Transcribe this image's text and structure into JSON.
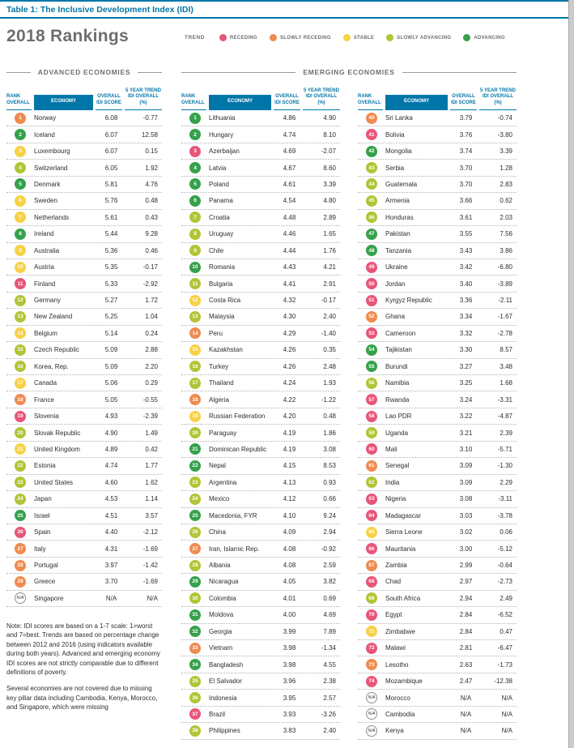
{
  "page": {
    "table_label": "Table 1: The Inclusive Development Index (IDI)",
    "title": "2018 Rankings"
  },
  "legend": {
    "label": "TREND",
    "items": [
      {
        "label": "RECEDING",
        "color": "#e75578"
      },
      {
        "label": "SLOWLY RECEDING",
        "color": "#ef8b50"
      },
      {
        "label": "STABLE",
        "color": "#f8d147"
      },
      {
        "label": "SLOWLY ADVANCING",
        "color": "#b2c437"
      },
      {
        "label": "ADVANCING",
        "color": "#35a14b"
      }
    ]
  },
  "sections": {
    "advanced": "ADVANCED ECONOMIES",
    "emerging": "EMERGING ECONOMIES"
  },
  "column_headers": {
    "rank": "RANK OVERALL",
    "economy": "ECONOMY",
    "score": "OVERALL IDI SCORE",
    "trend": "5 YEAR TREND IDI OVERALL (%)"
  },
  "trend_colors": {
    "receding": "#e75578",
    "slowly-receding": "#ef8b50",
    "stable": "#f8d147",
    "slowly-advancing": "#b2c437",
    "advancing": "#35a14b"
  },
  "columns": [
    {
      "id": "advanced",
      "rows": [
        {
          "rank": "1",
          "economy": "Norway",
          "score": "6.08",
          "trend": "-0.77",
          "cat": "slowly-receding"
        },
        {
          "rank": "2",
          "economy": "Iceland",
          "score": "6.07",
          "trend": "12.58",
          "cat": "advancing"
        },
        {
          "rank": "3",
          "economy": "Luxembourg",
          "score": "6.07",
          "trend": "0.15",
          "cat": "stable"
        },
        {
          "rank": "4",
          "economy": "Switzerland",
          "score": "6.05",
          "trend": "1.92",
          "cat": "slowly-advancing"
        },
        {
          "rank": "5",
          "economy": "Denmark",
          "score": "5.81",
          "trend": "4.76",
          "cat": "advancing"
        },
        {
          "rank": "6",
          "economy": "Sweden",
          "score": "5.76",
          "trend": "0.48",
          "cat": "stable"
        },
        {
          "rank": "7",
          "economy": "Netherlands",
          "score": "5.61",
          "trend": "0.43",
          "cat": "stable"
        },
        {
          "rank": "8",
          "economy": "Ireland",
          "score": "5.44",
          "trend": "9.28",
          "cat": "advancing"
        },
        {
          "rank": "9",
          "economy": "Australia",
          "score": "5.36",
          "trend": "0.46",
          "cat": "stable"
        },
        {
          "rank": "10",
          "economy": "Austria",
          "score": "5.35",
          "trend": "-0.17",
          "cat": "stable"
        },
        {
          "rank": "11",
          "economy": "Finland",
          "score": "5.33",
          "trend": "-2.92",
          "cat": "receding"
        },
        {
          "rank": "12",
          "economy": "Germany",
          "score": "5.27",
          "trend": "1.72",
          "cat": "slowly-advancing"
        },
        {
          "rank": "13",
          "economy": "New Zealand",
          "score": "5.25",
          "trend": "1.04",
          "cat": "slowly-advancing"
        },
        {
          "rank": "14",
          "economy": "Belgium",
          "score": "5.14",
          "trend": "0.24",
          "cat": "stable"
        },
        {
          "rank": "15",
          "economy": "Czech Republic",
          "score": "5.09",
          "trend": "2.88",
          "cat": "slowly-advancing"
        },
        {
          "rank": "16",
          "economy": "Korea, Rep.",
          "score": "5.09",
          "trend": "2.20",
          "cat": "slowly-advancing"
        },
        {
          "rank": "17",
          "economy": "Canada",
          "score": "5.06",
          "trend": "0.29",
          "cat": "stable"
        },
        {
          "rank": "18",
          "economy": "France",
          "score": "5.05",
          "trend": "-0.55",
          "cat": "slowly-receding"
        },
        {
          "rank": "19",
          "economy": "Slovenia",
          "score": "4.93",
          "trend": "-2.39",
          "cat": "receding"
        },
        {
          "rank": "20",
          "economy": "Slovak Republic",
          "score": "4.90",
          "trend": "1.49",
          "cat": "slowly-advancing"
        },
        {
          "rank": "21",
          "economy": "United Kingdom",
          "score": "4.89",
          "trend": "0.42",
          "cat": "stable"
        },
        {
          "rank": "22",
          "economy": "Estonia",
          "score": "4.74",
          "trend": "1.77",
          "cat": "slowly-advancing"
        },
        {
          "rank": "23",
          "economy": "United States",
          "score": "4.60",
          "trend": "1.62",
          "cat": "slowly-advancing"
        },
        {
          "rank": "24",
          "economy": "Japan",
          "score": "4.53",
          "trend": "1.14",
          "cat": "slowly-advancing"
        },
        {
          "rank": "25",
          "economy": "Israel",
          "score": "4.51",
          "trend": "3.57",
          "cat": "advancing"
        },
        {
          "rank": "26",
          "economy": "Spain",
          "score": "4.40",
          "trend": "-2.12",
          "cat": "receding"
        },
        {
          "rank": "27",
          "economy": "Italy",
          "score": "4.31",
          "trend": "-1.69",
          "cat": "slowly-receding"
        },
        {
          "rank": "28",
          "economy": "Portugal",
          "score": "3.97",
          "trend": "-1.42",
          "cat": "slowly-receding"
        },
        {
          "rank": "29",
          "economy": "Greece",
          "score": "3.70",
          "trend": "-1.69",
          "cat": "slowly-receding"
        },
        {
          "rank": "N/A",
          "economy": "Singapore",
          "score": "N/A",
          "trend": "N/A",
          "cat": "na"
        }
      ]
    },
    {
      "id": "emerging-1",
      "rows": [
        {
          "rank": "1",
          "economy": "Lithuania",
          "score": "4.86",
          "trend": "4.90",
          "cat": "advancing"
        },
        {
          "rank": "2",
          "economy": "Hungary",
          "score": "4.74",
          "trend": "8.10",
          "cat": "advancing"
        },
        {
          "rank": "3",
          "economy": "Azerbaijan",
          "score": "4.69",
          "trend": "-2.07",
          "cat": "receding"
        },
        {
          "rank": "4",
          "economy": "Latvia",
          "score": "4.67",
          "trend": "8.60",
          "cat": "advancing"
        },
        {
          "rank": "5",
          "economy": "Poland",
          "score": "4.61",
          "trend": "3.39",
          "cat": "advancing"
        },
        {
          "rank": "6",
          "economy": "Panama",
          "score": "4.54",
          "trend": "4.80",
          "cat": "advancing"
        },
        {
          "rank": "7",
          "economy": "Croatia",
          "score": "4.48",
          "trend": "2.89",
          "cat": "slowly-advancing"
        },
        {
          "rank": "8",
          "economy": "Uruguay",
          "score": "4.46",
          "trend": "1.65",
          "cat": "slowly-advancing"
        },
        {
          "rank": "9",
          "economy": "Chile",
          "score": "4.44",
          "trend": "1.76",
          "cat": "slowly-advancing"
        },
        {
          "rank": "10",
          "economy": "Romania",
          "score": "4.43",
          "trend": "4.21",
          "cat": "advancing"
        },
        {
          "rank": "11",
          "economy": "Bulgaria",
          "score": "4.41",
          "trend": "2.91",
          "cat": "slowly-advancing"
        },
        {
          "rank": "12",
          "economy": "Costa Rica",
          "score": "4.32",
          "trend": "-0.17",
          "cat": "stable"
        },
        {
          "rank": "13",
          "economy": "Malaysia",
          "score": "4.30",
          "trend": "2.40",
          "cat": "slowly-advancing"
        },
        {
          "rank": "14",
          "economy": "Peru",
          "score": "4.29",
          "trend": "-1.40",
          "cat": "slowly-receding"
        },
        {
          "rank": "15",
          "economy": "Kazakhstan",
          "score": "4.26",
          "trend": "0.35",
          "cat": "stable"
        },
        {
          "rank": "16",
          "economy": "Turkey",
          "score": "4.26",
          "trend": "2.48",
          "cat": "slowly-advancing"
        },
        {
          "rank": "17",
          "economy": "Thailand",
          "score": "4.24",
          "trend": "1.93",
          "cat": "slowly-advancing"
        },
        {
          "rank": "18",
          "economy": "Algeria",
          "score": "4.22",
          "trend": "-1.22",
          "cat": "slowly-receding"
        },
        {
          "rank": "19",
          "economy": "Russian Federation",
          "score": "4.20",
          "trend": "0.48",
          "cat": "stable"
        },
        {
          "rank": "20",
          "economy": "Paraguay",
          "score": "4.19",
          "trend": "1.86",
          "cat": "slowly-advancing"
        },
        {
          "rank": "21",
          "economy": "Dominican Republic",
          "score": "4.19",
          "trend": "3.08",
          "cat": "advancing"
        },
        {
          "rank": "22",
          "economy": "Nepal",
          "score": "4.15",
          "trend": "8.53",
          "cat": "advancing"
        },
        {
          "rank": "23",
          "economy": "Argentina",
          "score": "4.13",
          "trend": "0.93",
          "cat": "slowly-advancing"
        },
        {
          "rank": "24",
          "economy": "Mexico",
          "score": "4.12",
          "trend": "0.66",
          "cat": "slowly-advancing"
        },
        {
          "rank": "25",
          "economy": "Macedonia, FYR",
          "score": "4.10",
          "trend": "9.24",
          "cat": "advancing"
        },
        {
          "rank": "26",
          "economy": "China",
          "score": "4.09",
          "trend": "2.94",
          "cat": "slowly-advancing"
        },
        {
          "rank": "27",
          "economy": "Iran, Islamic Rep.",
          "score": "4.08",
          "trend": "-0.92",
          "cat": "slowly-receding"
        },
        {
          "rank": "28",
          "economy": "Albania",
          "score": "4.08",
          "trend": "2.59",
          "cat": "slowly-advancing"
        },
        {
          "rank": "29",
          "economy": "Nicaragua",
          "score": "4.05",
          "trend": "3.82",
          "cat": "advancing"
        },
        {
          "rank": "30",
          "economy": "Colombia",
          "score": "4.01",
          "trend": "0.69",
          "cat": "slowly-advancing"
        },
        {
          "rank": "31",
          "economy": "Moldova",
          "score": "4.00",
          "trend": "4.69",
          "cat": "advancing"
        },
        {
          "rank": "32",
          "economy": "Georgia",
          "score": "3.99",
          "trend": "7.89",
          "cat": "advancing"
        },
        {
          "rank": "33",
          "economy": "Vietnam",
          "score": "3.98",
          "trend": "-1.34",
          "cat": "slowly-receding"
        },
        {
          "rank": "34",
          "economy": "Bangladesh",
          "score": "3.98",
          "trend": "4.55",
          "cat": "advancing"
        },
        {
          "rank": "35",
          "economy": "El Salvador",
          "score": "3.96",
          "trend": "2.38",
          "cat": "slowly-advancing"
        },
        {
          "rank": "36",
          "economy": "Indonesia",
          "score": "3.95",
          "trend": "2.57",
          "cat": "slowly-advancing"
        },
        {
          "rank": "37",
          "economy": "Brazil",
          "score": "3.93",
          "trend": "-3.26",
          "cat": "receding"
        },
        {
          "rank": "38",
          "economy": "Philippines",
          "score": "3.83",
          "trend": "2.40",
          "cat": "slowly-advancing"
        }
      ]
    },
    {
      "id": "emerging-2",
      "rows": [
        {
          "rank": "40",
          "economy": "Sri Lanka",
          "score": "3.79",
          "trend": "-0.74",
          "cat": "slowly-receding"
        },
        {
          "rank": "41",
          "economy": "Bolivia",
          "score": "3.76",
          "trend": "-3.80",
          "cat": "receding"
        },
        {
          "rank": "42",
          "economy": "Mongolia",
          "score": "3.74",
          "trend": "3.39",
          "cat": "advancing"
        },
        {
          "rank": "43",
          "economy": "Serbia",
          "score": "3.70",
          "trend": "1.28",
          "cat": "slowly-advancing"
        },
        {
          "rank": "44",
          "economy": "Guatemala",
          "score": "3.70",
          "trend": "2.83",
          "cat": "slowly-advancing"
        },
        {
          "rank": "45",
          "economy": "Armenia",
          "score": "3.66",
          "trend": "0.62",
          "cat": "slowly-advancing"
        },
        {
          "rank": "46",
          "economy": "Honduras",
          "score": "3.61",
          "trend": "2.03",
          "cat": "slowly-advancing"
        },
        {
          "rank": "47",
          "economy": "Pakistan",
          "score": "3.55",
          "trend": "7.56",
          "cat": "advancing"
        },
        {
          "rank": "48",
          "economy": "Tanzania",
          "score": "3.43",
          "trend": "3.86",
          "cat": "advancing"
        },
        {
          "rank": "49",
          "economy": "Ukraine",
          "score": "3.42",
          "trend": "-6.80",
          "cat": "receding"
        },
        {
          "rank": "50",
          "economy": "Jordan",
          "score": "3.40",
          "trend": "-3.89",
          "cat": "receding"
        },
        {
          "rank": "51",
          "economy": "Kyrgyz Republic",
          "score": "3.36",
          "trend": "-2.11",
          "cat": "receding"
        },
        {
          "rank": "52",
          "economy": "Ghana",
          "score": "3.34",
          "trend": "-1.67",
          "cat": "slowly-receding"
        },
        {
          "rank": "53",
          "economy": "Cameroon",
          "score": "3.32",
          "trend": "-2.78",
          "cat": "receding"
        },
        {
          "rank": "54",
          "economy": "Tajikistan",
          "score": "3.30",
          "trend": "8.57",
          "cat": "advancing"
        },
        {
          "rank": "55",
          "economy": "Burundi",
          "score": "3.27",
          "trend": "3.48",
          "cat": "advancing"
        },
        {
          "rank": "56",
          "economy": "Namibia",
          "score": "3.25",
          "trend": "1.68",
          "cat": "slowly-advancing"
        },
        {
          "rank": "57",
          "economy": "Rwanda",
          "score": "3.24",
          "trend": "-3.31",
          "cat": "receding"
        },
        {
          "rank": "58",
          "economy": "Lao PDR",
          "score": "3.22",
          "trend": "-4.87",
          "cat": "receding"
        },
        {
          "rank": "59",
          "economy": "Uganda",
          "score": "3.21",
          "trend": "2.39",
          "cat": "slowly-advancing"
        },
        {
          "rank": "60",
          "economy": "Mali",
          "score": "3.10",
          "trend": "-5.71",
          "cat": "receding"
        },
        {
          "rank": "61",
          "economy": "Senegal",
          "score": "3.09",
          "trend": "-1.30",
          "cat": "slowly-receding"
        },
        {
          "rank": "62",
          "economy": "India",
          "score": "3.09",
          "trend": "2.29",
          "cat": "slowly-advancing"
        },
        {
          "rank": "63",
          "economy": "Nigeria",
          "score": "3.08",
          "trend": "-3.11",
          "cat": "receding"
        },
        {
          "rank": "64",
          "economy": "Madagascar",
          "score": "3.03",
          "trend": "-3.78",
          "cat": "receding"
        },
        {
          "rank": "65",
          "economy": "Sierra Leone",
          "score": "3.02",
          "trend": "0.06",
          "cat": "stable"
        },
        {
          "rank": "66",
          "economy": "Mauritania",
          "score": "3.00",
          "trend": "-5.12",
          "cat": "receding"
        },
        {
          "rank": "67",
          "economy": "Zambia",
          "score": "2.99",
          "trend": "-0.64",
          "cat": "slowly-receding"
        },
        {
          "rank": "68",
          "economy": "Chad",
          "score": "2.97",
          "trend": "-2.73",
          "cat": "receding"
        },
        {
          "rank": "69",
          "economy": "South Africa",
          "score": "2.94",
          "trend": "2.49",
          "cat": "slowly-advancing"
        },
        {
          "rank": "70",
          "economy": "Egypt",
          "score": "2.84",
          "trend": "-6.52",
          "cat": "receding"
        },
        {
          "rank": "71",
          "economy": "Zimbabwe",
          "score": "2.84",
          "trend": "0.47",
          "cat": "stable"
        },
        {
          "rank": "72",
          "economy": "Malawi",
          "score": "2.81",
          "trend": "-6.47",
          "cat": "receding"
        },
        {
          "rank": "73",
          "economy": "Lesotho",
          "score": "2.63",
          "trend": "-1.73",
          "cat": "slowly-receding"
        },
        {
          "rank": "74",
          "economy": "Mozambique",
          "score": "2.47",
          "trend": "-12.38",
          "cat": "receding"
        },
        {
          "rank": "N/A",
          "economy": "Morocco",
          "score": "N/A",
          "trend": "N/A",
          "cat": "na"
        },
        {
          "rank": "N/A",
          "economy": "Cambodia",
          "score": "N/A",
          "trend": "N/A",
          "cat": "na"
        },
        {
          "rank": "N/A",
          "economy": "Kenya",
          "score": "N/A",
          "trend": "N/A",
          "cat": "na"
        }
      ]
    }
  ],
  "notes": [
    "Note: IDI scores are based on a 1-7 scale: 1=worst and 7=best. Trends are based on percentage change between 2012 and 2016 (using indicators available during both years). Advanced and emerging economy IDI scores are not strictly comparable due to different definitions of poverty.",
    "Several economies are not covered due to missing key pillar data including Cambodia, Kenya, Morocco, and Singapore, which were missing"
  ]
}
